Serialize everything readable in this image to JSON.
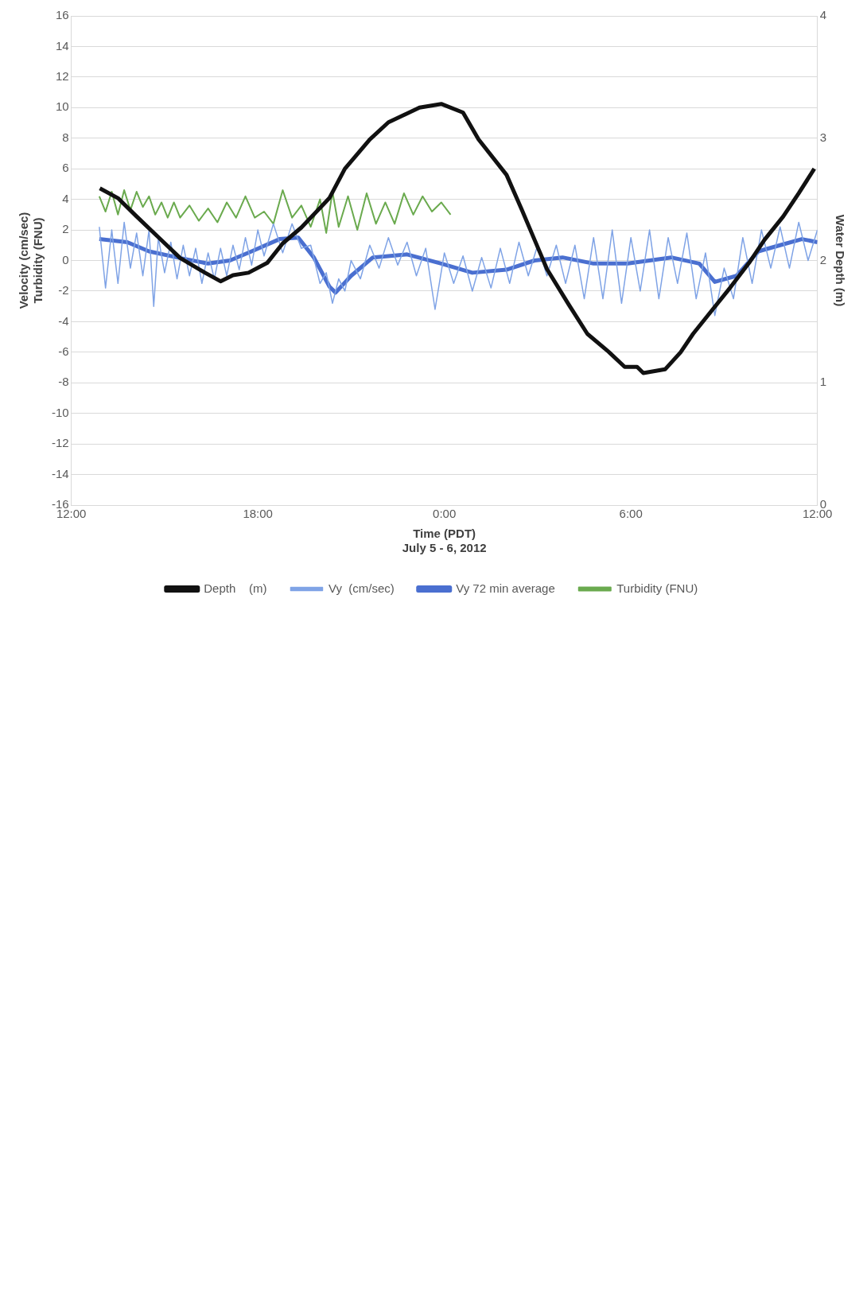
{
  "chart_data": {
    "type": "line",
    "xlabel": "Time (PDT)\nJuly 5 - 6, 2012",
    "ylabel": "Velocity (cm/sec)\nTurbidity (FNU)",
    "y2label": "Water Depth (m)",
    "xlim": [
      "2012-07-05T12:00",
      "2012-07-06T12:00"
    ],
    "xticks": [
      {
        "value": "2012-07-05T12:00",
        "label": "12:00"
      },
      {
        "value": "2012-07-05T18:00",
        "label": "18:00"
      },
      {
        "value": "2012-07-06T00:00",
        "label": "0:00"
      },
      {
        "value": "2012-07-06T06:00",
        "label": "6:00"
      },
      {
        "value": "2012-07-06T12:00",
        "label": "12:00"
      }
    ],
    "ylim": [
      -16,
      16
    ],
    "yticks": [
      -16,
      -14,
      -12,
      -10,
      -8,
      -6,
      -4,
      -2,
      0,
      2,
      4,
      6,
      8,
      10,
      12,
      14,
      16
    ],
    "y2lim": [
      0,
      4
    ],
    "y2ticks": [
      0,
      1,
      2,
      3,
      4
    ],
    "grid": "y",
    "legend": "bottom",
    "marker": "none",
    "line_style": "solid",
    "series": [
      {
        "name": "Vy  (cm/sec)",
        "color": "#7fa3e6",
        "x": [
          "2012-07-05T12:54",
          "2012-07-05T13:06",
          "2012-07-05T13:18",
          "2012-07-05T13:30",
          "2012-07-05T13:42",
          "2012-07-05T13:54",
          "2012-07-05T14:06",
          "2012-07-05T14:18",
          "2012-07-05T14:30",
          "2012-07-05T14:39",
          "2012-07-05T14:48",
          "2012-07-05T15:00",
          "2012-07-05T15:12",
          "2012-07-05T15:24",
          "2012-07-05T15:36",
          "2012-07-05T15:48",
          "2012-07-05T16:00",
          "2012-07-05T16:12",
          "2012-07-05T16:24",
          "2012-07-05T16:36",
          "2012-07-05T16:48",
          "2012-07-05T17:00",
          "2012-07-05T17:12",
          "2012-07-05T17:24",
          "2012-07-05T17:36",
          "2012-07-05T17:48",
          "2012-07-05T18:00",
          "2012-07-05T18:12",
          "2012-07-05T18:30",
          "2012-07-05T18:48",
          "2012-07-05T19:06",
          "2012-07-05T19:24",
          "2012-07-05T19:42",
          "2012-07-05T20:00",
          "2012-07-05T20:12",
          "2012-07-05T20:24",
          "2012-07-05T20:36",
          "2012-07-05T20:48",
          "2012-07-05T21:00",
          "2012-07-05T21:18",
          "2012-07-05T21:36",
          "2012-07-05T21:54",
          "2012-07-05T22:12",
          "2012-07-05T22:30",
          "2012-07-05T22:48",
          "2012-07-05T23:06",
          "2012-07-05T23:24",
          "2012-07-05T23:42",
          "2012-07-06T00:00",
          "2012-07-06T00:18",
          "2012-07-06T00:36",
          "2012-07-06T00:54",
          "2012-07-06T01:12",
          "2012-07-06T01:30",
          "2012-07-06T01:48",
          "2012-07-06T02:06",
          "2012-07-06T02:24",
          "2012-07-06T02:42",
          "2012-07-06T03:00",
          "2012-07-06T03:18",
          "2012-07-06T03:36",
          "2012-07-06T03:54",
          "2012-07-06T04:12",
          "2012-07-06T04:30",
          "2012-07-06T04:48",
          "2012-07-06T05:06",
          "2012-07-06T05:24",
          "2012-07-06T05:42",
          "2012-07-06T06:00",
          "2012-07-06T06:18",
          "2012-07-06T06:36",
          "2012-07-06T06:54",
          "2012-07-06T07:12",
          "2012-07-06T07:30",
          "2012-07-06T07:48",
          "2012-07-06T08:06",
          "2012-07-06T08:24",
          "2012-07-06T08:42",
          "2012-07-06T09:00",
          "2012-07-06T09:18",
          "2012-07-06T09:36",
          "2012-07-06T09:54",
          "2012-07-06T10:12",
          "2012-07-06T10:30",
          "2012-07-06T10:48",
          "2012-07-06T11:06",
          "2012-07-06T11:24",
          "2012-07-06T11:42",
          "2012-07-06T12:00"
        ],
        "values": [
          2.2,
          -1.8,
          2.0,
          -1.5,
          2.5,
          -0.5,
          1.8,
          -1.0,
          2.0,
          -3.0,
          1.5,
          -0.8,
          1.2,
          -1.2,
          1.0,
          -1.0,
          0.8,
          -1.5,
          0.5,
          -1.2,
          0.8,
          -1.0,
          1.0,
          -0.6,
          1.5,
          -0.3,
          2.0,
          0.3,
          2.4,
          0.5,
          2.4,
          0.8,
          1.0,
          -1.5,
          -0.8,
          -2.8,
          -1.2,
          -2.0,
          0.0,
          -1.2,
          1.0,
          -0.5,
          1.5,
          -0.3,
          1.2,
          -1.0,
          0.8,
          -3.2,
          0.5,
          -1.5,
          0.3,
          -2.0,
          0.2,
          -1.8,
          0.8,
          -1.5,
          1.2,
          -1.0,
          1.0,
          -1.0,
          1.0,
          -1.5,
          1.0,
          -2.5,
          1.5,
          -2.5,
          2.0,
          -2.8,
          1.5,
          -2.0,
          2.0,
          -2.5,
          1.5,
          -1.5,
          1.8,
          -2.5,
          0.5,
          -3.6,
          -0.5,
          -2.5,
          1.5,
          -1.5,
          2.0,
          -0.5,
          2.2,
          -0.5,
          2.5,
          0.0,
          2.0
        ]
      },
      {
        "name": "Vy 72 min average",
        "color": "#4a6fd0",
        "x": [
          "2012-07-05T12:54",
          "2012-07-05T13:48",
          "2012-07-05T14:30",
          "2012-07-05T15:24",
          "2012-07-05T16:24",
          "2012-07-05T17:06",
          "2012-07-05T17:48",
          "2012-07-05T18:42",
          "2012-07-05T19:18",
          "2012-07-05T19:48",
          "2012-07-05T20:18",
          "2012-07-05T20:30",
          "2012-07-05T21:00",
          "2012-07-05T21:42",
          "2012-07-05T22:48",
          "2012-07-05T23:54",
          "2012-07-06T00:54",
          "2012-07-06T02:00",
          "2012-07-06T02:54",
          "2012-07-06T03:48",
          "2012-07-06T04:48",
          "2012-07-06T05:54",
          "2012-07-06T07:18",
          "2012-07-06T08:12",
          "2012-07-06T08:42",
          "2012-07-06T09:24",
          "2012-07-06T10:06",
          "2012-07-06T10:48",
          "2012-07-06T11:30",
          "2012-07-06T12:00"
        ],
        "values": [
          1.4,
          1.2,
          0.6,
          0.2,
          -0.2,
          0,
          0.6,
          1.4,
          1.5,
          0.2,
          -1.7,
          -2.1,
          -1.0,
          0.2,
          0.4,
          -0.2,
          -0.8,
          -0.6,
          0,
          0.2,
          -0.2,
          -0.2,
          0.2,
          -0.2,
          -1.4,
          -1.0,
          0.6,
          1.0,
          1.4,
          1.2
        ]
      },
      {
        "name": "Turbidity (FNU)",
        "color": "#6aaa4e",
        "x": [
          "2012-07-05T12:54",
          "2012-07-05T13:06",
          "2012-07-05T13:18",
          "2012-07-05T13:30",
          "2012-07-05T13:42",
          "2012-07-05T13:54",
          "2012-07-05T14:06",
          "2012-07-05T14:18",
          "2012-07-05T14:30",
          "2012-07-05T14:42",
          "2012-07-05T14:54",
          "2012-07-05T15:06",
          "2012-07-05T15:18",
          "2012-07-05T15:30",
          "2012-07-05T15:48",
          "2012-07-05T16:06",
          "2012-07-05T16:24",
          "2012-07-05T16:42",
          "2012-07-05T17:00",
          "2012-07-05T17:18",
          "2012-07-05T17:36",
          "2012-07-05T17:54",
          "2012-07-05T18:12",
          "2012-07-05T18:30",
          "2012-07-05T18:48",
          "2012-07-05T19:06",
          "2012-07-05T19:24",
          "2012-07-05T19:42",
          "2012-07-05T20:00",
          "2012-07-05T20:12",
          "2012-07-05T20:24",
          "2012-07-05T20:36",
          "2012-07-05T20:54",
          "2012-07-05T21:12",
          "2012-07-05T21:30",
          "2012-07-05T21:48",
          "2012-07-05T22:06",
          "2012-07-05T22:24",
          "2012-07-05T22:42",
          "2012-07-05T23:00",
          "2012-07-05T23:18",
          "2012-07-05T23:36",
          "2012-07-05T23:54",
          "2012-07-06T00:12"
        ],
        "values": [
          4.2,
          3.2,
          4.5,
          3.0,
          4.6,
          3.3,
          4.5,
          3.5,
          4.2,
          3.0,
          3.8,
          2.8,
          3.8,
          2.8,
          3.6,
          2.6,
          3.4,
          2.5,
          3.8,
          2.8,
          4.2,
          2.8,
          3.2,
          2.4,
          4.6,
          2.8,
          3.6,
          2.2,
          4.0,
          1.8,
          4.5,
          2.2,
          4.2,
          2.0,
          4.4,
          2.4,
          3.8,
          2.4,
          4.4,
          3.0,
          4.2,
          3.2,
          3.8,
          3.0
        ]
      },
      {
        "name": "Depth    (m)",
        "color": "#111111",
        "axis": "y2",
        "x": [
          "2012-07-05T12:55",
          "2012-07-05T13:30",
          "2012-07-05T14:06",
          "2012-07-05T14:48",
          "2012-07-05T15:30",
          "2012-07-05T16:18",
          "2012-07-05T16:48",
          "2012-07-05T17:12",
          "2012-07-05T17:42",
          "2012-07-05T18:18",
          "2012-07-05T18:48",
          "2012-07-05T19:24",
          "2012-07-05T20:18",
          "2012-07-05T20:48",
          "2012-07-05T21:36",
          "2012-07-05T22:12",
          "2012-07-05T23:12",
          "2012-07-05T23:54",
          "2012-07-06T00:36",
          "2012-07-06T01:06",
          "2012-07-06T02:00",
          "2012-07-06T02:30",
          "2012-07-06T02:54",
          "2012-07-06T03:18",
          "2012-07-06T04:00",
          "2012-07-06T04:36",
          "2012-07-06T05:18",
          "2012-07-06T05:48",
          "2012-07-06T06:12",
          "2012-07-06T06:24",
          "2012-07-06T07:06",
          "2012-07-06T07:36",
          "2012-07-06T08:00",
          "2012-07-06T08:36",
          "2012-07-06T09:12",
          "2012-07-06T09:48",
          "2012-07-06T10:18",
          "2012-07-06T10:54",
          "2012-07-06T11:24",
          "2012-07-06T11:54"
        ],
        "values": [
          2.59,
          2.51,
          2.36,
          2.19,
          2.02,
          1.9,
          1.83,
          1.88,
          1.9,
          1.98,
          2.14,
          2.27,
          2.51,
          2.75,
          2.99,
          3.13,
          3.25,
          3.28,
          3.21,
          2.99,
          2.7,
          2.41,
          2.17,
          1.93,
          1.64,
          1.4,
          1.25,
          1.13,
          1.13,
          1.08,
          1.11,
          1.25,
          1.4,
          1.59,
          1.78,
          1.98,
          2.17,
          2.36,
          2.55,
          2.75
        ]
      }
    ]
  }
}
